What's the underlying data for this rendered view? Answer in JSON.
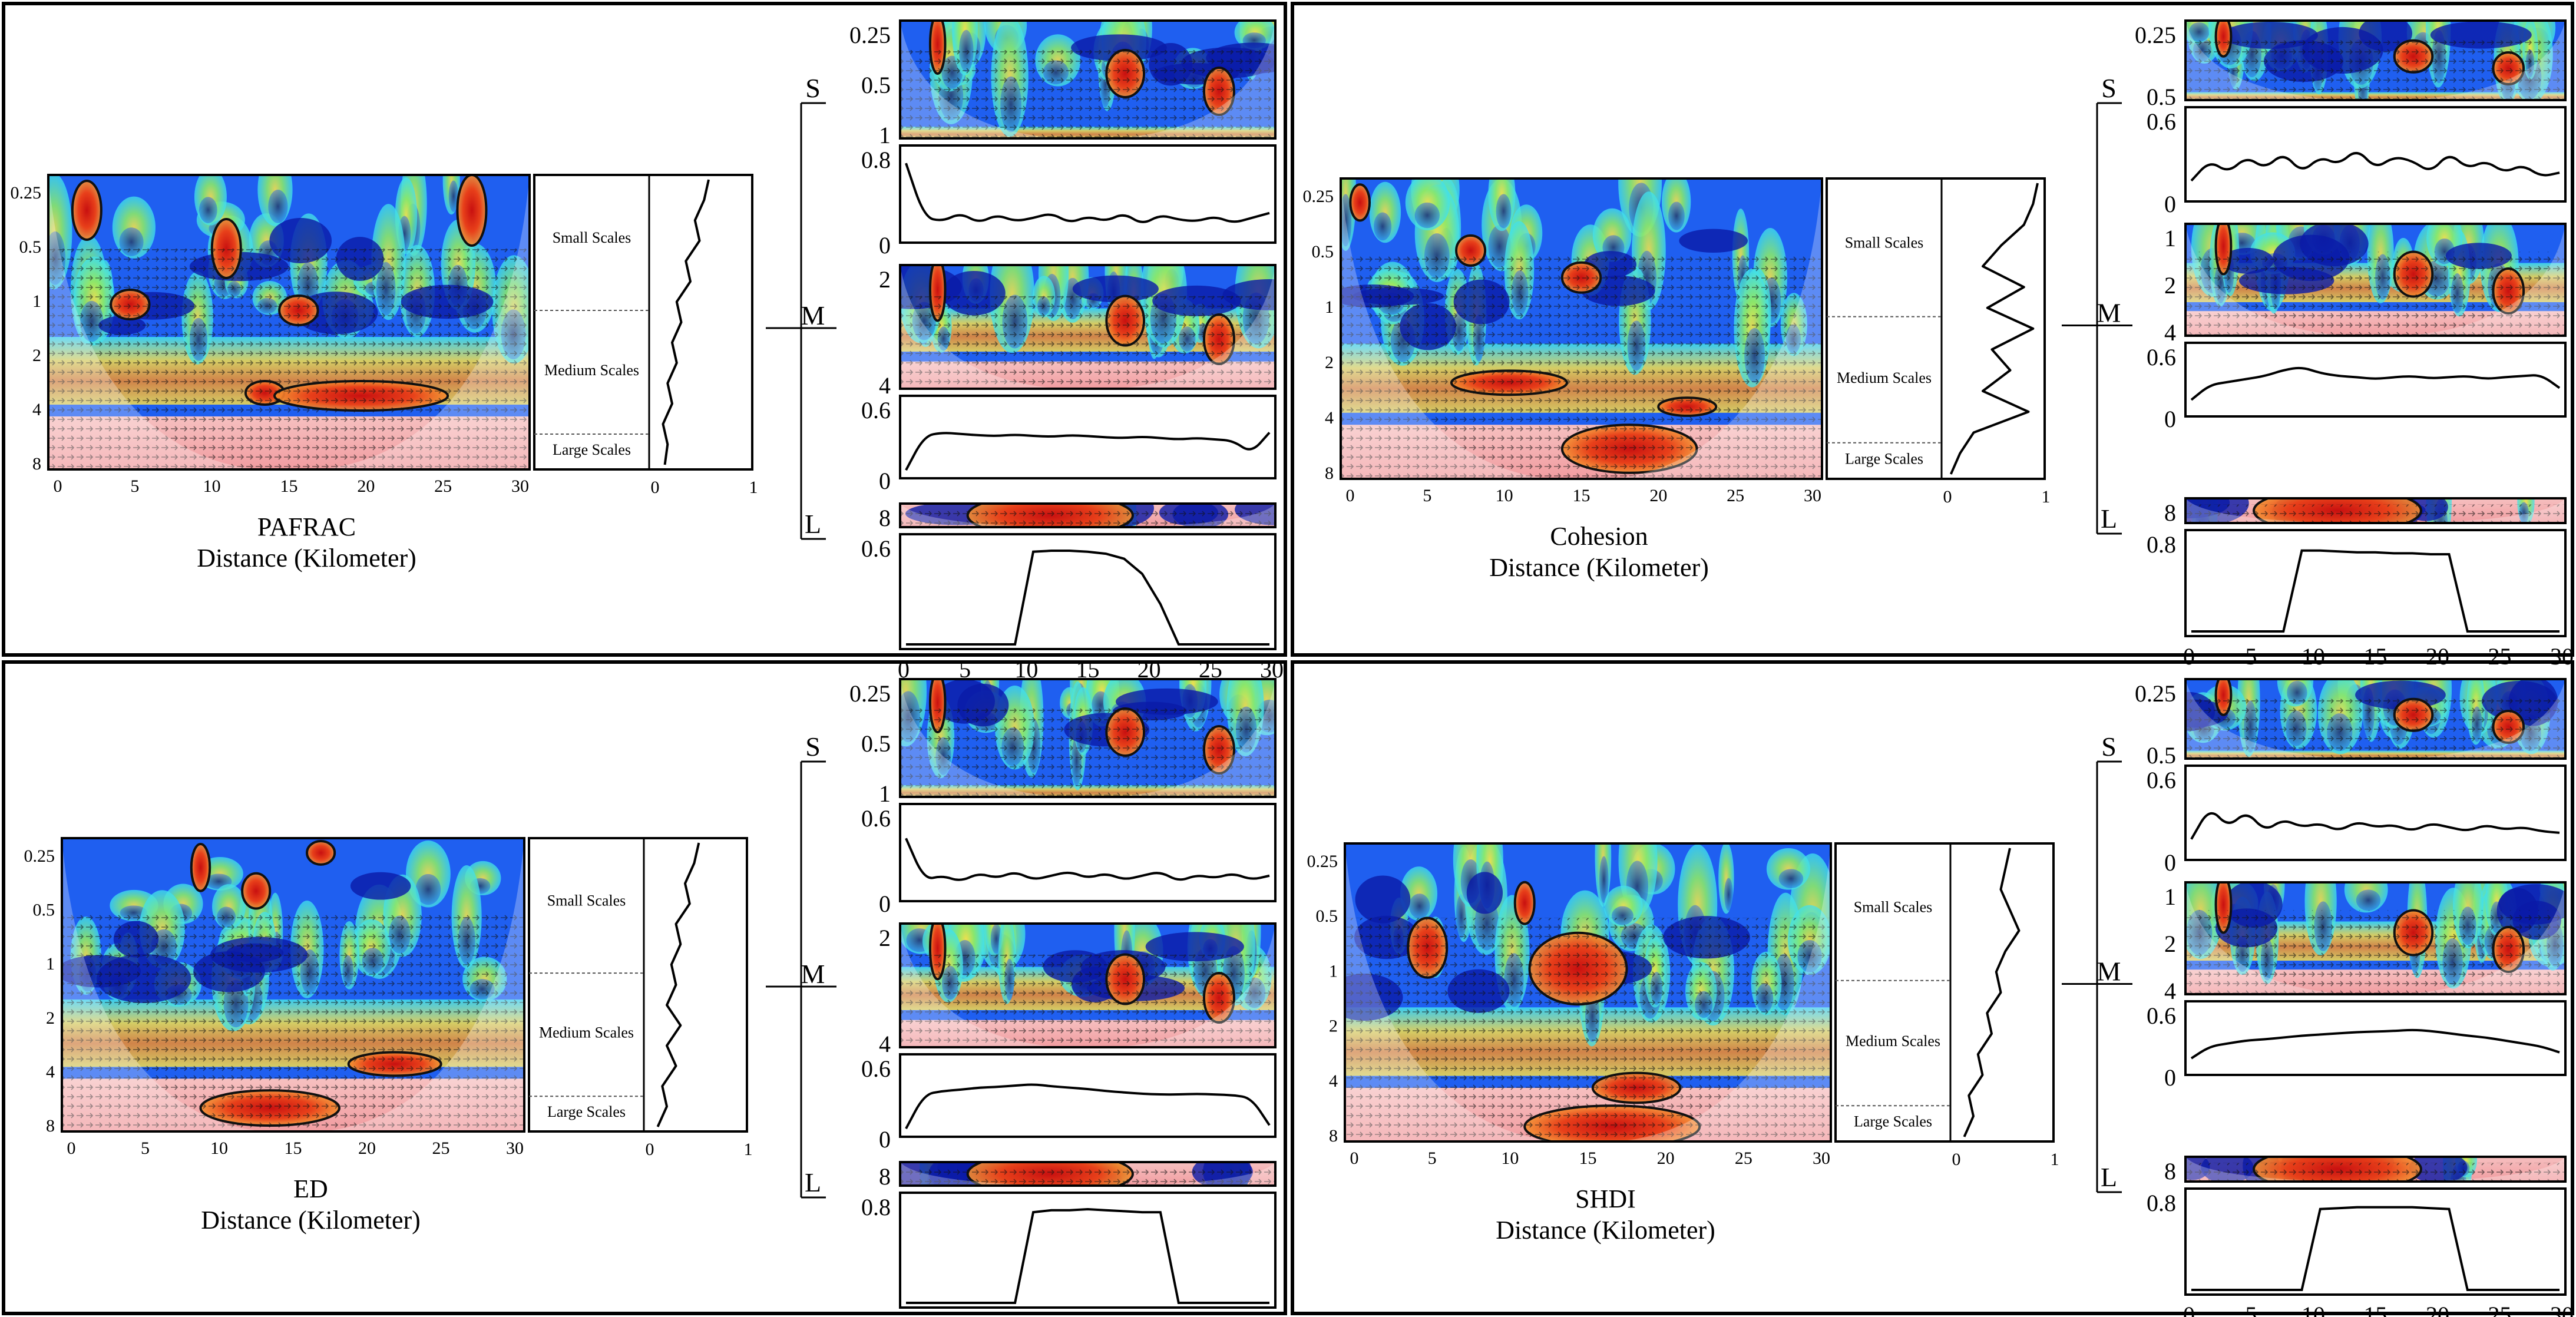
{
  "chart_data": [
    {
      "type": "heatmap",
      "title": "PAFRAC",
      "xlabel": "Distance (Kilometer)",
      "ylabel": "",
      "x_ticks": [
        "0",
        "5",
        "10",
        "15",
        "20",
        "25",
        "30"
      ],
      "y_ticks": [
        "0.25",
        "0.5",
        "1",
        "2",
        "4",
        "8"
      ],
      "xlim": [
        0,
        30
      ],
      "scale_bands": [
        "Small Scales",
        "Medium Scales",
        "Large Scales"
      ],
      "global_power_ticks": [
        "0",
        "1"
      ],
      "global_power_profile": [
        0.6,
        0.55,
        0.45,
        0.5,
        0.35,
        0.4,
        0.25,
        0.3,
        0.2,
        0.25,
        0.15,
        0.2,
        0.1,
        0.15,
        0.12
      ],
      "insets": [
        {
          "label": "S",
          "y_ticks": [
            "0.25",
            "0.5",
            "1"
          ],
          "series_tick": "0.8",
          "zero": "0",
          "series": [
            0.9,
            0.25,
            0.2,
            0.3,
            0.18,
            0.28,
            0.2,
            0.24,
            0.3,
            0.18,
            0.26,
            0.2,
            0.3,
            0.16,
            0.28,
            0.22,
            0.2,
            0.26,
            0.18,
            0.24,
            0.3
          ]
        },
        {
          "label": "M",
          "y_ticks": [
            "2",
            "4"
          ],
          "series_tick": "0.6",
          "zero": "0",
          "series": [
            0.05,
            0.55,
            0.6,
            0.58,
            0.56,
            0.55,
            0.57,
            0.55,
            0.54,
            0.56,
            0.55,
            0.53,
            0.52,
            0.54,
            0.52,
            0.5,
            0.52,
            0.5,
            0.48,
            0.3,
            0.6
          ]
        },
        {
          "label": "L",
          "y_ticks": [
            "8"
          ],
          "series_tick": "0.6",
          "zero": "",
          "series": [
            0,
            0,
            0,
            0,
            0,
            0,
            0,
            0.92,
            0.93,
            0.93,
            0.92,
            0.9,
            0.85,
            0.7,
            0.4,
            0,
            0,
            0,
            0,
            0,
            0
          ]
        }
      ],
      "inset_x_ticks": [
        "0",
        "5",
        "10",
        "15",
        "20",
        "25",
        "30"
      ]
    },
    {
      "type": "heatmap",
      "title": "Cohesion",
      "xlabel": "Distance (Kilometer)",
      "ylabel": "",
      "x_ticks": [
        "0",
        "5",
        "10",
        "15",
        "20",
        "25",
        "30"
      ],
      "y_ticks": [
        "0.25",
        "0.5",
        "1",
        "2",
        "4",
        "8"
      ],
      "xlim": [
        0,
        30
      ],
      "scale_bands": [
        "Small Scales",
        "Medium Scales",
        "Large Scales"
      ],
      "global_power_ticks": [
        "0",
        "1"
      ],
      "global_power_profile": [
        1,
        0.95,
        0.85,
        0.6,
        0.4,
        0.85,
        0.45,
        0.95,
        0.5,
        0.7,
        0.4,
        0.9,
        0.3,
        0.15,
        0.05
      ],
      "insets": [
        {
          "label": "S",
          "y_ticks": [
            "0.25",
            "0.5"
          ],
          "series_tick": "0.6",
          "zero": "0",
          "series": [
            0.2,
            0.45,
            0.3,
            0.5,
            0.35,
            0.55,
            0.3,
            0.5,
            0.4,
            0.6,
            0.35,
            0.5,
            0.45,
            0.3,
            0.55,
            0.35,
            0.45,
            0.3,
            0.4,
            0.25,
            0.3
          ]
        },
        {
          "label": "M",
          "y_ticks": [
            "1",
            "2",
            "4"
          ],
          "series_tick": "0.6",
          "zero": "0",
          "series": [
            0.2,
            0.45,
            0.5,
            0.55,
            0.6,
            0.7,
            0.75,
            0.65,
            0.6,
            0.58,
            0.55,
            0.58,
            0.6,
            0.56,
            0.58,
            0.6,
            0.55,
            0.58,
            0.6,
            0.62,
            0.4
          ]
        },
        {
          "label": "L",
          "y_ticks": [
            "8"
          ],
          "series_tick": "0.8",
          "zero": "",
          "series": [
            0,
            0,
            0,
            0,
            0,
            0,
            0.88,
            0.88,
            0.87,
            0.86,
            0.86,
            0.85,
            0.85,
            0.84,
            0.84,
            0,
            0,
            0,
            0,
            0,
            0
          ]
        }
      ],
      "inset_x_ticks": [
        "0",
        "5",
        "10",
        "15",
        "20",
        "25",
        "30"
      ]
    },
    {
      "type": "heatmap",
      "title": "ED",
      "xlabel": "Distance (Kilometer)",
      "ylabel": "",
      "x_ticks": [
        "0",
        "5",
        "10",
        "15",
        "20",
        "25",
        "30"
      ],
      "y_ticks": [
        "0.25",
        "0.5",
        "1",
        "2",
        "4",
        "8"
      ],
      "xlim": [
        0,
        30
      ],
      "scale_bands": [
        "Small Scales",
        "Medium Scales",
        "Large Scales"
      ],
      "global_power_ticks": [
        "0",
        "1"
      ],
      "global_power_profile": [
        0.55,
        0.5,
        0.4,
        0.45,
        0.3,
        0.35,
        0.25,
        0.3,
        0.2,
        0.35,
        0.2,
        0.3,
        0.15,
        0.2,
        0.1
      ],
      "insets": [
        {
          "label": "S",
          "y_ticks": [
            "0.25",
            "0.5",
            "1"
          ],
          "series_tick": "0.6",
          "zero": "0",
          "series": [
            0.7,
            0.2,
            0.25,
            0.18,
            0.28,
            0.22,
            0.3,
            0.2,
            0.25,
            0.3,
            0.22,
            0.28,
            0.2,
            0.25,
            0.3,
            0.18,
            0.26,
            0.22,
            0.28,
            0.2,
            0.25
          ]
        },
        {
          "label": "M",
          "y_ticks": [
            "2",
            "4"
          ],
          "series_tick": "0.6",
          "zero": "0",
          "series": [
            0.05,
            0.55,
            0.6,
            0.62,
            0.65,
            0.66,
            0.68,
            0.7,
            0.67,
            0.65,
            0.63,
            0.6,
            0.58,
            0.56,
            0.55,
            0.55,
            0.56,
            0.55,
            0.54,
            0.5,
            0.1
          ]
        },
        {
          "label": "L",
          "y_ticks": [
            "8"
          ],
          "series_tick": "0.8",
          "zero": "",
          "series": [
            0,
            0,
            0,
            0,
            0,
            0,
            0,
            0.9,
            0.92,
            0.92,
            0.93,
            0.92,
            0.91,
            0.9,
            0.9,
            0,
            0,
            0,
            0,
            0,
            0
          ]
        }
      ],
      "inset_x_ticks": [
        "0",
        "5",
        "10",
        "15",
        "20",
        "25",
        "30"
      ]
    },
    {
      "type": "heatmap",
      "title": "SHDI",
      "xlabel": "Distance (Kilometer)",
      "ylabel": "",
      "x_ticks": [
        "0",
        "5",
        "10",
        "15",
        "20",
        "25",
        "30"
      ],
      "y_ticks": [
        "0.25",
        "0.5",
        "1",
        "2",
        "4",
        "8"
      ],
      "xlim": [
        0,
        30
      ],
      "scale_bands": [
        "Small Scales",
        "Medium Scales",
        "Large Scales"
      ],
      "global_power_ticks": [
        "0",
        "1"
      ],
      "global_power_profile": [
        0.6,
        0.55,
        0.5,
        0.6,
        0.7,
        0.55,
        0.45,
        0.5,
        0.35,
        0.4,
        0.25,
        0.3,
        0.15,
        0.2,
        0.1
      ],
      "insets": [
        {
          "label": "S",
          "y_ticks": [
            "0.25",
            "0.5"
          ],
          "series_tick": "0.6",
          "zero": "0",
          "series": [
            0.2,
            0.6,
            0.35,
            0.55,
            0.3,
            0.45,
            0.35,
            0.4,
            0.3,
            0.42,
            0.35,
            0.38,
            0.3,
            0.4,
            0.35,
            0.3,
            0.38,
            0.32,
            0.35,
            0.3,
            0.28
          ]
        },
        {
          "label": "M",
          "y_ticks": [
            "1",
            "2",
            "4"
          ],
          "series_tick": "0.6",
          "zero": "0",
          "series": [
            0.2,
            0.4,
            0.45,
            0.5,
            0.52,
            0.55,
            0.58,
            0.6,
            0.62,
            0.64,
            0.65,
            0.66,
            0.68,
            0.66,
            0.62,
            0.58,
            0.55,
            0.5,
            0.45,
            0.4,
            0.3
          ]
        },
        {
          "label": "L",
          "y_ticks": [
            "8"
          ],
          "series_tick": "0.8",
          "zero": "",
          "series": [
            0,
            0,
            0,
            0,
            0,
            0,
            0,
            0.88,
            0.89,
            0.9,
            0.9,
            0.9,
            0.9,
            0.89,
            0.88,
            0,
            0,
            0,
            0,
            0,
            0
          ]
        }
      ],
      "inset_x_ticks": [
        "0",
        "5",
        "10",
        "15",
        "20",
        "25",
        "30"
      ]
    }
  ],
  "palette": {
    "deep_blue": "#0a1aa8",
    "blue": "#1f5ff0",
    "cyan": "#3fe0f0",
    "green": "#8ae86a",
    "yellow": "#f4e04c",
    "orange": "#f08a2c",
    "red": "#d41c10",
    "pink_band": "#f19ca0"
  }
}
